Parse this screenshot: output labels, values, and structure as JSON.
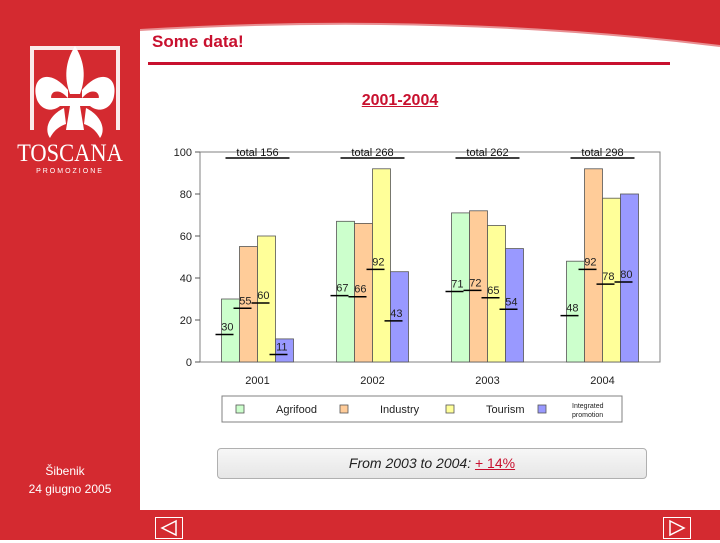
{
  "sidebar": {
    "brand_name": "TOSCANA",
    "brand_sub": "PROMOZIONE",
    "city": "Šibenik",
    "date": "24 giugno 2005"
  },
  "header": {
    "title": "Some data!"
  },
  "summary": {
    "prefix": "From 2003 to 2004: ",
    "highlight": "+ 14%"
  },
  "colors": {
    "brand_red": "#d42a30",
    "agrifood": "#ccffcc",
    "industry": "#ffcc99",
    "tourism": "#ffff99",
    "integrated": "#9999ff"
  },
  "chart_data": {
    "type": "bar",
    "title": "2001-2004",
    "categories": [
      "2001",
      "2002",
      "2003",
      "2004"
    ],
    "series": [
      {
        "name": "Agrifood",
        "values": [
          30,
          67,
          71,
          48
        ]
      },
      {
        "name": "Industry",
        "values": [
          55,
          66,
          72,
          92
        ]
      },
      {
        "name": "Tourism",
        "values": [
          60,
          92,
          65,
          78
        ]
      },
      {
        "name": "Integrated promotion",
        "values": [
          11,
          43,
          54,
          80
        ]
      }
    ],
    "data_labels": [
      [
        "30",
        "55",
        "60",
        "11"
      ],
      [
        "67",
        "66",
        "92",
        "43"
      ],
      [
        "71",
        "72",
        "65",
        "54"
      ],
      [
        "48",
        "92",
        "78",
        "80"
      ]
    ],
    "totals": [
      "total 156",
      "total 268",
      "total 262",
      "total 298"
    ],
    "ylim": [
      0,
      100
    ],
    "yticks": [
      0,
      20,
      40,
      60,
      80,
      100
    ],
    "xlabel": "",
    "ylabel": "",
    "legend": "bottom",
    "grid": false
  }
}
